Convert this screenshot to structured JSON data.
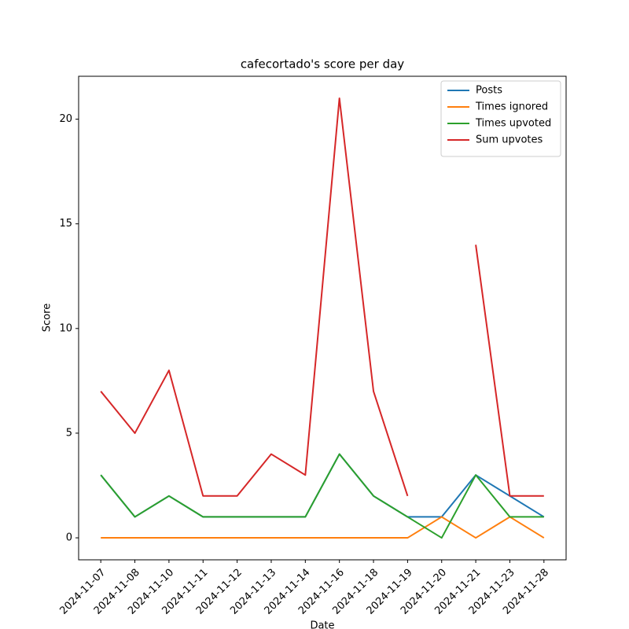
{
  "chart_data": {
    "type": "line",
    "title": "cafecortado's score per day",
    "xlabel": "Date",
    "ylabel": "Score",
    "categories": [
      "2024-11-07",
      "2024-11-08",
      "2024-11-10",
      "2024-11-11",
      "2024-11-12",
      "2024-11-13",
      "2024-11-14",
      "2024-11-16",
      "2024-11-18",
      "2024-11-19",
      "2024-11-20",
      "2024-11-21",
      "2024-11-23",
      "2024-11-28"
    ],
    "series": [
      {
        "name": "Posts",
        "color": "#1f77b4",
        "values": [
          3,
          1,
          2,
          1,
          1,
          1,
          1,
          4,
          2,
          1,
          1,
          3,
          2,
          1
        ]
      },
      {
        "name": "Times ignored",
        "color": "#ff7f0e",
        "values": [
          0,
          0,
          0,
          0,
          0,
          0,
          0,
          0,
          0,
          0,
          1,
          0,
          1,
          0
        ]
      },
      {
        "name": "Times upvoted",
        "color": "#2ca02c",
        "values": [
          3,
          1,
          2,
          1,
          1,
          1,
          1,
          4,
          2,
          1,
          0,
          3,
          1,
          1
        ]
      },
      {
        "name": "Sum upvotes",
        "color": "#d62728",
        "values": [
          7,
          5,
          8,
          2,
          2,
          4,
          3,
          21,
          7,
          2,
          null,
          14,
          2,
          2
        ]
      }
    ],
    "ylim": [
      -1.05,
      22.05
    ],
    "yticks": [
      0,
      5,
      10,
      15,
      20
    ],
    "legend": "upper right",
    "grid": false
  }
}
